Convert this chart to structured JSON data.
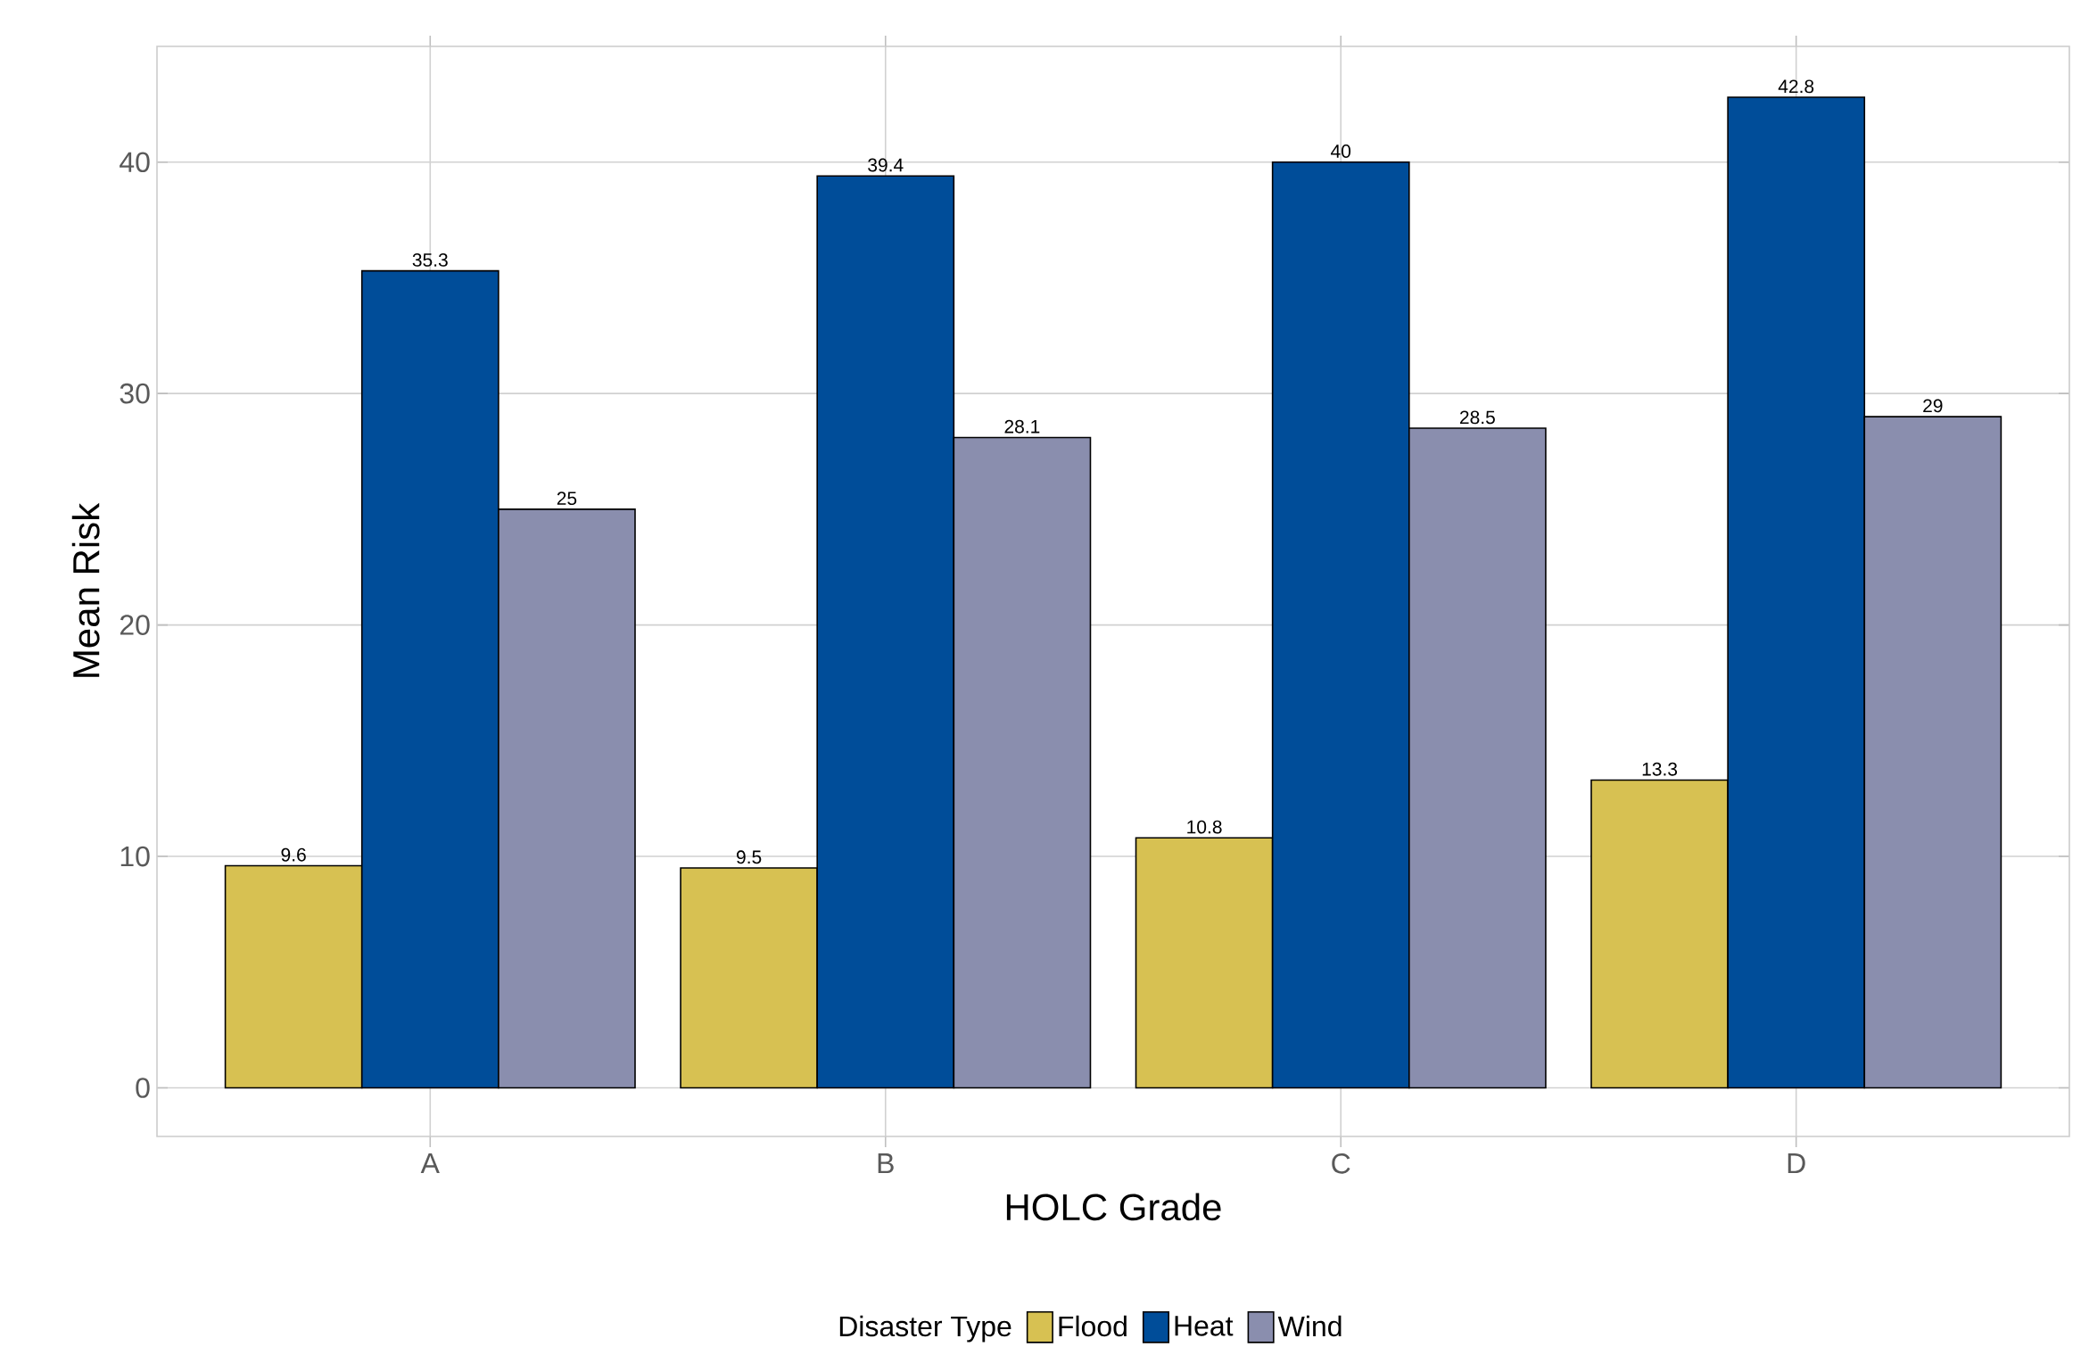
{
  "chart_data": {
    "type": "bar",
    "xlabel": "HOLC Grade",
    "ylabel": "Mean Risk",
    "legend_title": "Disaster Type",
    "categories": [
      "A",
      "B",
      "C",
      "D"
    ],
    "series": [
      {
        "name": "Flood",
        "color": "#d7c152",
        "values": [
          9.6,
          9.5,
          10.8,
          13.3
        ]
      },
      {
        "name": "Heat",
        "color": "#004d99",
        "values": [
          35.3,
          39.4,
          40,
          42.8
        ]
      },
      {
        "name": "Wind",
        "color": "#8a8eae",
        "values": [
          25,
          28.1,
          28.5,
          29
        ]
      }
    ],
    "ylim": [
      -2.1,
      45
    ],
    "yticks": [
      0,
      10,
      20,
      30,
      40
    ],
    "grid": true,
    "legend": "bottom",
    "data_labels": true
  }
}
